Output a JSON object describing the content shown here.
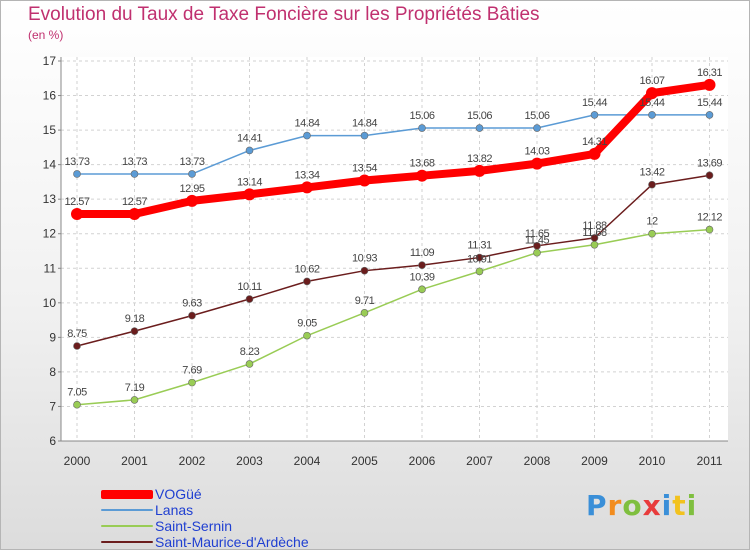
{
  "chart_data": {
    "type": "line",
    "title": "Evolution du Taux de Taxe Foncière sur les Propriétés Bâties",
    "ylabel": "(en %)",
    "xlabel": "",
    "categories": [
      "2000",
      "2001",
      "2002",
      "2003",
      "2004",
      "2005",
      "2006",
      "2007",
      "2008",
      "2009",
      "2010",
      "2011"
    ],
    "yticks": [
      "6",
      "7",
      "8",
      "9",
      "10",
      "11",
      "12",
      "13",
      "14",
      "15",
      "16",
      "17"
    ],
    "ylim": [
      6,
      17
    ],
    "grid": true,
    "series": [
      {
        "name": "VOGüé",
        "color": "#ff0000",
        "values": [
          12.57,
          12.57,
          12.95,
          13.14,
          13.34,
          13.54,
          13.68,
          13.82,
          14.03,
          14.31,
          16.07,
          16.31
        ],
        "labels": [
          "12.57",
          "12.57",
          "12.95",
          "13.14",
          "13.34",
          "13.54",
          "13.68",
          "13.82",
          "14.03",
          "14.31",
          "16.07",
          "16.31"
        ]
      },
      {
        "name": "Lanas",
        "color": "#5b9bd5",
        "values": [
          13.73,
          13.73,
          13.73,
          14.41,
          14.84,
          14.84,
          15.06,
          15.06,
          15.06,
          15.44,
          15.44,
          15.44
        ],
        "labels": [
          "13.73",
          "13.73",
          "13.73",
          "14.41",
          "14.84",
          "14.84",
          "15.06",
          "15.06",
          "15.06",
          "15.44",
          "15.44",
          "15.44"
        ]
      },
      {
        "name": "Saint-Sernin",
        "color": "#99cc55",
        "values": [
          7.05,
          7.19,
          7.69,
          8.23,
          9.05,
          9.71,
          10.39,
          10.91,
          11.45,
          11.68,
          12,
          12.12
        ],
        "labels": [
          "7.05",
          "7.19",
          "7.69",
          "8.23",
          "9.05",
          "9.71",
          "10.39",
          "10.91",
          "11.45",
          "11.68",
          "12",
          "12.12"
        ]
      },
      {
        "name": "Saint-Maurice-d'Ardèche",
        "color": "#6b1d1d",
        "values": [
          8.75,
          9.18,
          9.63,
          10.11,
          10.62,
          10.93,
          11.09,
          11.31,
          11.65,
          11.88,
          13.42,
          13.69
        ],
        "labels": [
          "8.75",
          "9.18",
          "9.63",
          "10.11",
          "10.62",
          "10.93",
          "11.09",
          "11.31",
          "11.65",
          "11.88",
          "13.42",
          "13.69"
        ]
      }
    ]
  },
  "brand": {
    "logo_letters": [
      "P",
      "r",
      "o",
      "x",
      "i",
      "t",
      "i"
    ],
    "logo_colors": [
      "#3a8fd8",
      "#f28c1e",
      "#7fbf3f",
      "#e83c3c",
      "#3a8fd8",
      "#f2c21e",
      "#7fbf3f"
    ]
  }
}
